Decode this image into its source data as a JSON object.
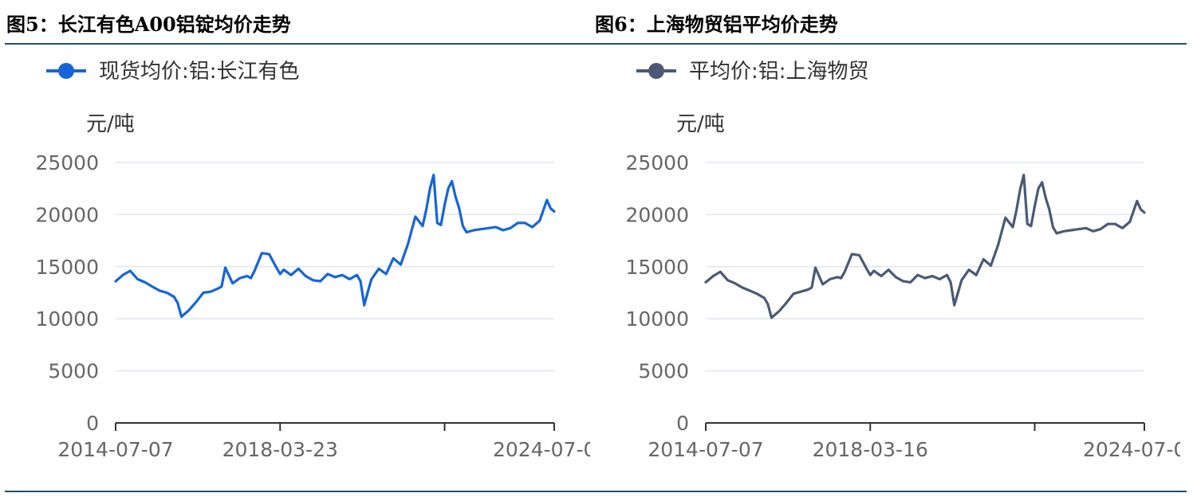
{
  "figures": [
    {
      "title": "图5：长江有色A00铝锭均价走势",
      "legend": "现货均价:铝:长江有色",
      "unit": "元/吨",
      "color": "#1565d8"
    },
    {
      "title": "图6：上海物贸铝平均价走势",
      "legend": "平均价:铝:上海物贸",
      "unit": "元/吨",
      "color": "#4a5a75"
    }
  ],
  "chart_data": [
    {
      "type": "line",
      "title": "图5：长江有色A00铝锭均价走势",
      "ylabel": "元/吨",
      "ylim": [
        0,
        25000
      ],
      "yticks": [
        0,
        5000,
        10000,
        15000,
        20000,
        25000
      ],
      "xtick_labels": [
        "2014-07-07",
        "2018-03-23",
        "2024-07-0"
      ],
      "grid": true,
      "legend_position": "top-left",
      "series": [
        {
          "name": "现货均价:铝:长江有色",
          "x": [
            "2014-07",
            "2014-09",
            "2014-11",
            "2015-01",
            "2015-03",
            "2015-05",
            "2015-07",
            "2015-09",
            "2015-11",
            "2015-12",
            "2016-01",
            "2016-03",
            "2016-05",
            "2016-07",
            "2016-09",
            "2016-11",
            "2016-12",
            "2017-01",
            "2017-03",
            "2017-05",
            "2017-07",
            "2017-08",
            "2017-09",
            "2017-11",
            "2018-01",
            "2018-03",
            "2018-04",
            "2018-05",
            "2018-07",
            "2018-09",
            "2018-11",
            "2019-01",
            "2019-03",
            "2019-05",
            "2019-07",
            "2019-09",
            "2019-11",
            "2020-01",
            "2020-02",
            "2020-03",
            "2020-04",
            "2020-05",
            "2020-07",
            "2020-09",
            "2020-11",
            "2021-01",
            "2021-03",
            "2021-05",
            "2021-07",
            "2021-08",
            "2021-09",
            "2021-10",
            "2021-11",
            "2021-12",
            "2022-01",
            "2022-02",
            "2022-03",
            "2022-04",
            "2022-05",
            "2022-06",
            "2022-07",
            "2022-09",
            "2022-11",
            "2023-01",
            "2023-03",
            "2023-05",
            "2023-07",
            "2023-09",
            "2023-11",
            "2024-01",
            "2024-03",
            "2024-05",
            "2024-06",
            "2024-07"
          ],
          "values": [
            13600,
            14200,
            14600,
            13800,
            13500,
            13100,
            12700,
            12500,
            12100,
            11500,
            10200,
            10800,
            11600,
            12500,
            12600,
            12900,
            13100,
            14900,
            13400,
            13900,
            14100,
            13900,
            14600,
            16300,
            16200,
            14900,
            14300,
            14700,
            14200,
            14800,
            14100,
            13700,
            13600,
            14300,
            14000,
            14200,
            13800,
            14200,
            13600,
            11300,
            12600,
            13800,
            14800,
            14300,
            15800,
            15200,
            17200,
            19800,
            18900,
            20500,
            22500,
            23800,
            19200,
            19000,
            20900,
            22500,
            23200,
            21700,
            20600,
            18900,
            18300,
            18500,
            18600,
            18700,
            18800,
            18500,
            18700,
            19200,
            19200,
            18800,
            19400,
            21400,
            20600,
            20300
          ]
        }
      ]
    },
    {
      "type": "line",
      "title": "图6：上海物贸铝平均价走势",
      "ylabel": "元/吨",
      "ylim": [
        0,
        25000
      ],
      "yticks": [
        0,
        5000,
        10000,
        15000,
        20000,
        25000
      ],
      "xtick_labels": [
        "2014-07-07",
        "2018-03-16",
        "2024-07-0"
      ],
      "grid": true,
      "legend_position": "top-left",
      "series": [
        {
          "name": "平均价:铝:上海物贸",
          "x": [
            "2014-07",
            "2014-09",
            "2014-11",
            "2015-01",
            "2015-03",
            "2015-05",
            "2015-07",
            "2015-09",
            "2015-11",
            "2015-12",
            "2016-01",
            "2016-03",
            "2016-05",
            "2016-07",
            "2016-09",
            "2016-11",
            "2016-12",
            "2017-01",
            "2017-03",
            "2017-05",
            "2017-07",
            "2017-08",
            "2017-09",
            "2017-11",
            "2018-01",
            "2018-03",
            "2018-04",
            "2018-05",
            "2018-07",
            "2018-09",
            "2018-11",
            "2019-01",
            "2019-03",
            "2019-05",
            "2019-07",
            "2019-09",
            "2019-11",
            "2020-01",
            "2020-02",
            "2020-03",
            "2020-04",
            "2020-05",
            "2020-07",
            "2020-09",
            "2020-11",
            "2021-01",
            "2021-03",
            "2021-05",
            "2021-07",
            "2021-08",
            "2021-09",
            "2021-10",
            "2021-11",
            "2021-12",
            "2022-01",
            "2022-02",
            "2022-03",
            "2022-04",
            "2022-05",
            "2022-06",
            "2022-07",
            "2022-09",
            "2022-11",
            "2023-01",
            "2023-03",
            "2023-05",
            "2023-07",
            "2023-09",
            "2023-11",
            "2024-01",
            "2024-03",
            "2024-05",
            "2024-06",
            "2024-07"
          ],
          "values": [
            13500,
            14100,
            14500,
            13700,
            13400,
            13000,
            12700,
            12400,
            12000,
            11400,
            10100,
            10700,
            11500,
            12400,
            12600,
            12800,
            13000,
            14900,
            13300,
            13800,
            14000,
            13900,
            14500,
            16200,
            16100,
            14800,
            14200,
            14600,
            14100,
            14700,
            14000,
            13600,
            13500,
            14200,
            13900,
            14100,
            13800,
            14200,
            13500,
            11300,
            12500,
            13700,
            14700,
            14200,
            15700,
            15100,
            17100,
            19700,
            18800,
            20400,
            22400,
            23800,
            19100,
            18900,
            20800,
            22500,
            23100,
            21600,
            20500,
            18800,
            18200,
            18400,
            18500,
            18600,
            18700,
            18400,
            18600,
            19100,
            19100,
            18700,
            19300,
            21300,
            20500,
            20200
          ]
        }
      ]
    }
  ]
}
